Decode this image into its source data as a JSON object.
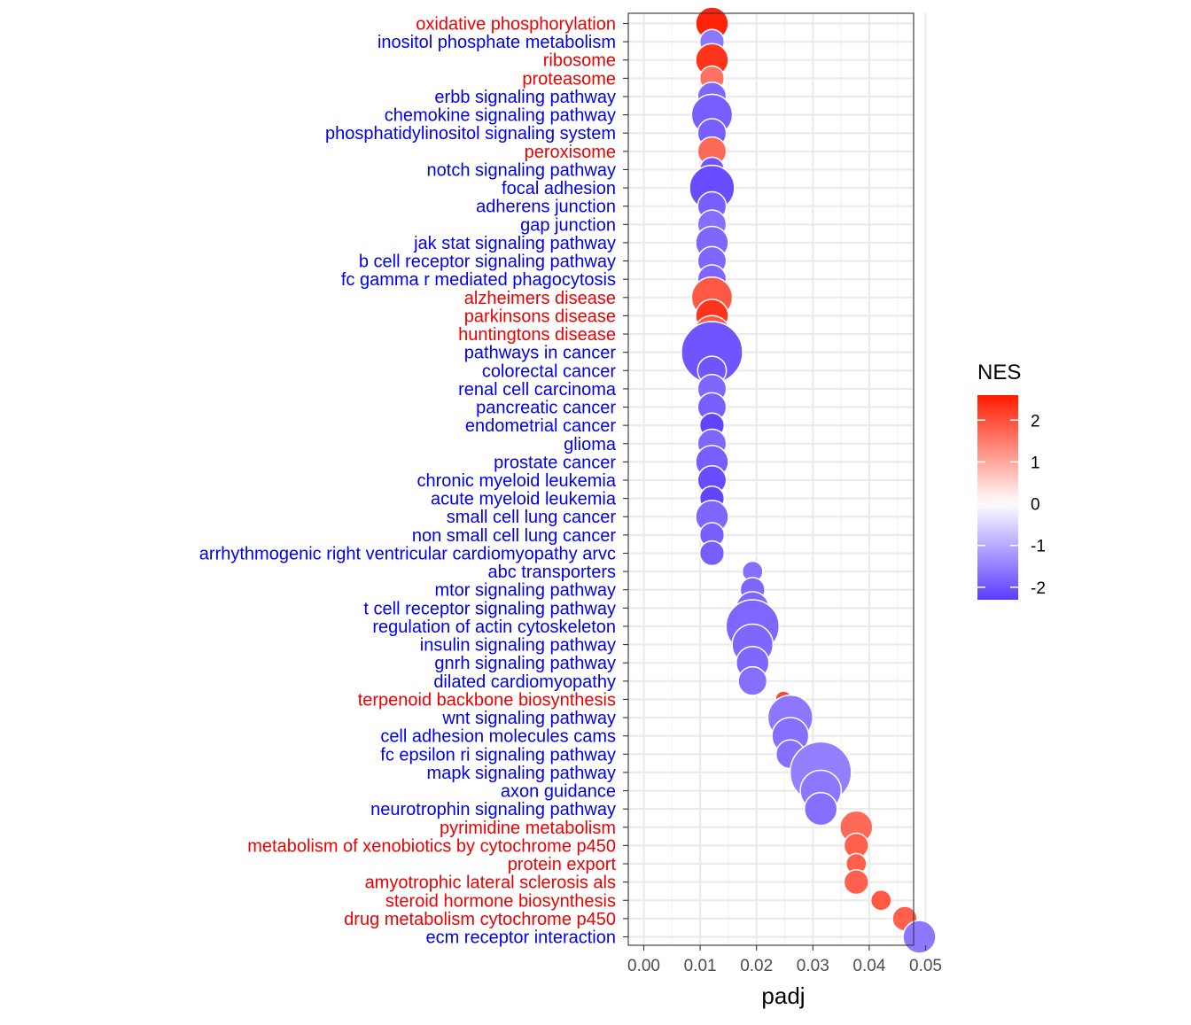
{
  "chart_data": {
    "type": "scatter",
    "title": "",
    "xlabel": "padj",
    "ylabel": "",
    "xlim": [
      -0.002,
      0.0505
    ],
    "x_ticks": [
      0.0,
      0.01,
      0.02,
      0.03,
      0.04,
      0.05
    ],
    "x_tick_labels": [
      "0.00",
      "0.01",
      "0.02",
      "0.03",
      "0.04",
      "0.05"
    ],
    "grid": true,
    "legend": {
      "title": "NES",
      "placement": "right",
      "type": "colorbar",
      "range": [
        -2.3,
        2.6
      ],
      "ticks": [
        2,
        1,
        0,
        -1,
        -2
      ],
      "tick_labels": [
        "2",
        "1",
        "0",
        "-1",
        "-2"
      ],
      "low_color": "#5B3BFF",
      "mid_color": "#FFFFFF",
      "high_color": "#FF1A00"
    },
    "label_colors": {
      "positive": "#EE0000",
      "negative": "#0000EE"
    },
    "points": [
      {
        "pathway": "oxidative phosphorylation",
        "padj": 0.0121,
        "nes": 2.5,
        "size": 5
      },
      {
        "pathway": "inositol phosphate metabolism",
        "padj": 0.0121,
        "nes": -1.6,
        "size": 3
      },
      {
        "pathway": "ribosome",
        "padj": 0.0121,
        "nes": 2.3,
        "size": 5
      },
      {
        "pathway": "proteasome",
        "padj": 0.0121,
        "nes": 1.6,
        "size": 3
      },
      {
        "pathway": "erbb signaling pathway",
        "padj": 0.0121,
        "nes": -1.8,
        "size": 4
      },
      {
        "pathway": "chemokine signaling pathway",
        "padj": 0.0121,
        "nes": -1.9,
        "size": 7
      },
      {
        "pathway": "phosphatidylinositol signaling system",
        "padj": 0.0121,
        "nes": -1.9,
        "size": 4
      },
      {
        "pathway": "peroxisome",
        "padj": 0.0121,
        "nes": 1.7,
        "size": 4
      },
      {
        "pathway": "notch signaling pathway",
        "padj": 0.0121,
        "nes": -2.0,
        "size": 3
      },
      {
        "pathway": "focal adhesion",
        "padj": 0.0121,
        "nes": -2.1,
        "size": 8
      },
      {
        "pathway": "adherens junction",
        "padj": 0.0121,
        "nes": -1.9,
        "size": 4
      },
      {
        "pathway": "gap junction",
        "padj": 0.0121,
        "nes": -1.7,
        "size": 4
      },
      {
        "pathway": "jak stat signaling pathway",
        "padj": 0.0121,
        "nes": -1.8,
        "size": 5
      },
      {
        "pathway": "b cell receptor signaling pathway",
        "padj": 0.0121,
        "nes": -1.8,
        "size": 4
      },
      {
        "pathway": "fc gamma r mediated phagocytosis",
        "padj": 0.0121,
        "nes": -1.8,
        "size": 4
      },
      {
        "pathway": "alzheimers disease",
        "padj": 0.0121,
        "nes": 1.9,
        "size": 7
      },
      {
        "pathway": "parkinsons disease",
        "padj": 0.0121,
        "nes": 2.3,
        "size": 5
      },
      {
        "pathway": "huntingtons disease",
        "padj": 0.0121,
        "nes": 1.9,
        "size": 6
      },
      {
        "pathway": "pathways in cancer",
        "padj": 0.0121,
        "nes": -2.0,
        "size": 12
      },
      {
        "pathway": "colorectal cancer",
        "padj": 0.0121,
        "nes": -2.0,
        "size": 4
      },
      {
        "pathway": "renal cell carcinoma",
        "padj": 0.0121,
        "nes": -1.8,
        "size": 4
      },
      {
        "pathway": "pancreatic cancer",
        "padj": 0.0121,
        "nes": -1.9,
        "size": 4
      },
      {
        "pathway": "endometrial cancer",
        "padj": 0.0121,
        "nes": -2.2,
        "size": 3
      },
      {
        "pathway": "glioma",
        "padj": 0.0121,
        "nes": -1.8,
        "size": 4
      },
      {
        "pathway": "prostate cancer",
        "padj": 0.0121,
        "nes": -1.9,
        "size": 5
      },
      {
        "pathway": "chronic myeloid leukemia",
        "padj": 0.0121,
        "nes": -2.1,
        "size": 4
      },
      {
        "pathway": "acute myeloid leukemia",
        "padj": 0.0121,
        "nes": -2.2,
        "size": 3
      },
      {
        "pathway": "small cell lung cancer",
        "padj": 0.0121,
        "nes": -1.8,
        "size": 5
      },
      {
        "pathway": "non small cell lung cancer",
        "padj": 0.0121,
        "nes": -1.9,
        "size": 3
      },
      {
        "pathway": "arrhythmogenic right ventricular cardiomyopathy arvc",
        "padj": 0.0121,
        "nes": -1.9,
        "size": 3
      },
      {
        "pathway": "abc transporters",
        "padj": 0.0193,
        "nes": -1.7,
        "size": 2
      },
      {
        "pathway": "mtor signaling pathway",
        "padj": 0.0193,
        "nes": -1.8,
        "size": 3
      },
      {
        "pathway": "t cell receptor signaling pathway",
        "padj": 0.0193,
        "nes": -1.8,
        "size": 5
      },
      {
        "pathway": "regulation of actin cytoskeleton",
        "padj": 0.0193,
        "nes": -1.8,
        "size": 10
      },
      {
        "pathway": "insulin signaling pathway",
        "padj": 0.0193,
        "nes": -1.8,
        "size": 7
      },
      {
        "pathway": "gnrh signaling pathway",
        "padj": 0.0193,
        "nes": -1.8,
        "size": 5
      },
      {
        "pathway": "dilated cardiomyopathy",
        "padj": 0.0193,
        "nes": -1.7,
        "size": 4
      },
      {
        "pathway": "terpenoid backbone biosynthesis",
        "padj": 0.0248,
        "nes": 2.1,
        "size": 1
      },
      {
        "pathway": "wnt signaling pathway",
        "padj": 0.026,
        "nes": -1.6,
        "size": 8
      },
      {
        "pathway": "cell adhesion molecules cams",
        "padj": 0.026,
        "nes": -1.7,
        "size": 6
      },
      {
        "pathway": "fc epsilon ri signaling pathway",
        "padj": 0.026,
        "nes": -1.7,
        "size": 4
      },
      {
        "pathway": "mapk signaling pathway",
        "padj": 0.0314,
        "nes": -1.5,
        "size": 12
      },
      {
        "pathway": "axon guidance",
        "padj": 0.0314,
        "nes": -1.6,
        "size": 7
      },
      {
        "pathway": "neurotrophin signaling pathway",
        "padj": 0.0314,
        "nes": -1.7,
        "size": 5
      },
      {
        "pathway": "pyrimidine metabolism",
        "padj": 0.0377,
        "nes": 1.7,
        "size": 5
      },
      {
        "pathway": "metabolism of xenobiotics by cytochrome p450",
        "padj": 0.0377,
        "nes": 1.8,
        "size": 3
      },
      {
        "pathway": "protein export",
        "padj": 0.0377,
        "nes": 1.8,
        "size": 2
      },
      {
        "pathway": "amyotrophic lateral sclerosis als",
        "padj": 0.0377,
        "nes": 1.8,
        "size": 3
      },
      {
        "pathway": "steroid hormone biosynthesis",
        "padj": 0.0421,
        "nes": 1.9,
        "size": 2
      },
      {
        "pathway": "drug metabolism cytochrome p450",
        "padj": 0.0463,
        "nes": 1.8,
        "size": 3
      },
      {
        "pathway": "ecm receptor interaction",
        "padj": 0.0489,
        "nes": -1.6,
        "size": 5
      }
    ]
  }
}
